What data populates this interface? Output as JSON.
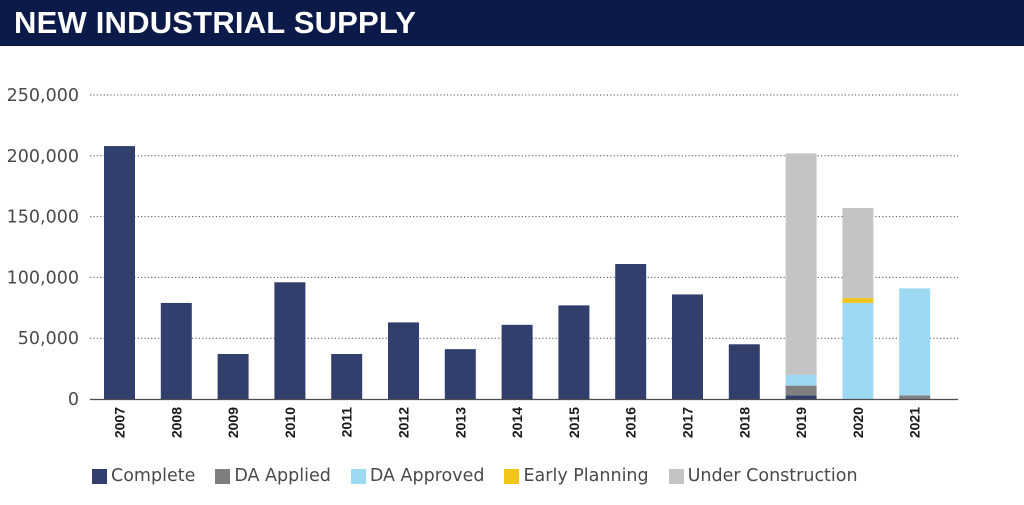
{
  "header": {
    "title": "NEW INDUSTRIAL SUPPLY"
  },
  "chart_data": {
    "type": "bar",
    "stacked": true,
    "title": "NEW INDUSTRIAL SUPPLY",
    "xlabel": "",
    "ylabel": "",
    "ylim": [
      0,
      250000
    ],
    "yticks": [
      0,
      50000,
      100000,
      150000,
      200000,
      250000
    ],
    "ytick_labels": [
      "0",
      "50,000",
      "100,000",
      "150,000",
      "200,000",
      "250,000"
    ],
    "grid": true,
    "legend_position": "bottom",
    "categories": [
      "2007",
      "2008",
      "2009",
      "2010",
      "2011",
      "2012",
      "2013",
      "2014",
      "2015",
      "2016",
      "2017",
      "2018",
      "2019",
      "2020",
      "2021"
    ],
    "series": [
      {
        "name": "Complete",
        "color": "#323e6b",
        "values": [
          208000,
          79000,
          37000,
          96000,
          37000,
          63000,
          41000,
          61000,
          77000,
          111000,
          86000,
          45000,
          3000,
          0,
          0
        ]
      },
      {
        "name": "DA Applied",
        "color": "#7f7f80",
        "values": [
          0,
          0,
          0,
          0,
          0,
          0,
          0,
          0,
          0,
          0,
          0,
          0,
          8000,
          0,
          3000
        ]
      },
      {
        "name": "DA Approved",
        "color": "#9dd9f3",
        "values": [
          0,
          0,
          0,
          0,
          0,
          0,
          0,
          0,
          0,
          0,
          0,
          0,
          9000,
          79000,
          88000
        ]
      },
      {
        "name": "Early Planning",
        "color": "#f2c51b",
        "values": [
          0,
          0,
          0,
          0,
          0,
          0,
          0,
          0,
          0,
          0,
          0,
          0,
          0,
          4000,
          0
        ]
      },
      {
        "name": "Under Construction",
        "color": "#c4c4c5",
        "values": [
          0,
          0,
          0,
          0,
          0,
          0,
          0,
          0,
          0,
          0,
          0,
          0,
          182000,
          74000,
          0
        ]
      }
    ]
  }
}
